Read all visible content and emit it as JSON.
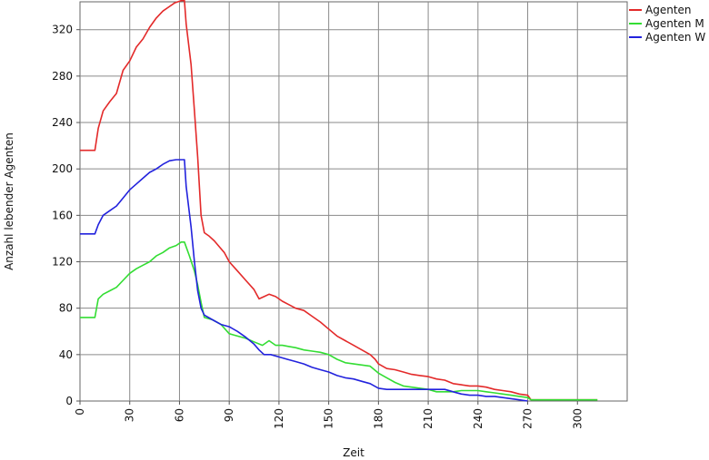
{
  "chart_data": {
    "type": "line",
    "title": "",
    "xlabel": "Zeit",
    "ylabel": "Anzahl lebender Agenten",
    "xlim": [
      0,
      330
    ],
    "ylim": [
      0,
      344
    ],
    "x_ticks": [
      0,
      30,
      60,
      90,
      120,
      150,
      180,
      210,
      240,
      270,
      300
    ],
    "y_ticks": [
      0,
      40,
      80,
      120,
      160,
      200,
      240,
      280,
      320
    ],
    "grid": true,
    "legend_position": "top-right",
    "series": [
      {
        "name": "Agenten",
        "color": "#e32a2a",
        "points": [
          [
            0,
            216
          ],
          [
            9,
            216
          ],
          [
            11,
            235
          ],
          [
            14,
            250
          ],
          [
            18,
            258
          ],
          [
            22,
            265
          ],
          [
            26,
            285
          ],
          [
            30,
            293
          ],
          [
            34,
            305
          ],
          [
            38,
            312
          ],
          [
            42,
            322
          ],
          [
            46,
            330
          ],
          [
            50,
            336
          ],
          [
            54,
            340
          ],
          [
            57,
            343
          ],
          [
            61,
            345
          ],
          [
            63,
            345
          ],
          [
            64,
            325
          ],
          [
            67,
            290
          ],
          [
            69,
            250
          ],
          [
            71,
            210
          ],
          [
            73,
            160
          ],
          [
            75,
            145
          ],
          [
            78,
            142
          ],
          [
            81,
            138
          ],
          [
            84,
            133
          ],
          [
            87,
            128
          ],
          [
            90,
            120
          ],
          [
            95,
            112
          ],
          [
            100,
            104
          ],
          [
            105,
            96
          ],
          [
            108,
            88
          ],
          [
            111,
            90
          ],
          [
            114,
            92
          ],
          [
            118,
            90
          ],
          [
            122,
            86
          ],
          [
            126,
            83
          ],
          [
            130,
            80
          ],
          [
            135,
            78
          ],
          [
            140,
            73
          ],
          [
            145,
            68
          ],
          [
            150,
            62
          ],
          [
            155,
            56
          ],
          [
            160,
            52
          ],
          [
            165,
            48
          ],
          [
            170,
            44
          ],
          [
            175,
            40
          ],
          [
            178,
            36
          ],
          [
            180,
            32
          ],
          [
            185,
            28
          ],
          [
            190,
            27
          ],
          [
            195,
            25
          ],
          [
            200,
            23
          ],
          [
            205,
            22
          ],
          [
            210,
            21
          ],
          [
            215,
            19
          ],
          [
            220,
            18
          ],
          [
            225,
            15
          ],
          [
            230,
            14
          ],
          [
            235,
            13
          ],
          [
            240,
            13
          ],
          [
            245,
            12
          ],
          [
            250,
            10
          ],
          [
            255,
            9
          ],
          [
            260,
            8
          ],
          [
            265,
            6
          ],
          [
            270,
            5
          ],
          [
            272,
            1
          ],
          [
            300,
            1
          ],
          [
            312,
            1
          ]
        ]
      },
      {
        "name": "Agenten M",
        "color": "#33dd33",
        "points": [
          [
            0,
            72
          ],
          [
            9,
            72
          ],
          [
            11,
            88
          ],
          [
            14,
            92
          ],
          [
            18,
            95
          ],
          [
            22,
            98
          ],
          [
            26,
            104
          ],
          [
            30,
            110
          ],
          [
            34,
            114
          ],
          [
            38,
            117
          ],
          [
            42,
            120
          ],
          [
            46,
            125
          ],
          [
            50,
            128
          ],
          [
            54,
            132
          ],
          [
            58,
            134
          ],
          [
            61,
            137
          ],
          [
            63,
            137
          ],
          [
            66,
            125
          ],
          [
            69,
            112
          ],
          [
            71,
            100
          ],
          [
            73,
            85
          ],
          [
            75,
            72
          ],
          [
            80,
            70
          ],
          [
            85,
            66
          ],
          [
            90,
            58
          ],
          [
            95,
            56
          ],
          [
            100,
            54
          ],
          [
            105,
            51
          ],
          [
            110,
            48
          ],
          [
            114,
            52
          ],
          [
            118,
            48
          ],
          [
            122,
            48
          ],
          [
            126,
            47
          ],
          [
            130,
            46
          ],
          [
            135,
            44
          ],
          [
            140,
            43
          ],
          [
            145,
            42
          ],
          [
            150,
            40
          ],
          [
            155,
            36
          ],
          [
            160,
            33
          ],
          [
            165,
            32
          ],
          [
            170,
            31
          ],
          [
            175,
            30
          ],
          [
            180,
            24
          ],
          [
            185,
            20
          ],
          [
            190,
            16
          ],
          [
            195,
            13
          ],
          [
            200,
            12
          ],
          [
            205,
            11
          ],
          [
            210,
            10
          ],
          [
            215,
            8
          ],
          [
            220,
            8
          ],
          [
            225,
            8
          ],
          [
            230,
            9
          ],
          [
            235,
            9
          ],
          [
            240,
            9
          ],
          [
            245,
            8
          ],
          [
            250,
            7
          ],
          [
            255,
            6
          ],
          [
            260,
            5
          ],
          [
            265,
            4
          ],
          [
            270,
            3
          ],
          [
            272,
            1
          ],
          [
            300,
            1
          ],
          [
            312,
            1
          ]
        ]
      },
      {
        "name": "Agenten W",
        "color": "#2222dd",
        "points": [
          [
            0,
            144
          ],
          [
            9,
            144
          ],
          [
            11,
            152
          ],
          [
            14,
            160
          ],
          [
            18,
            164
          ],
          [
            22,
            168
          ],
          [
            26,
            175
          ],
          [
            30,
            182
          ],
          [
            34,
            187
          ],
          [
            38,
            192
          ],
          [
            42,
            197
          ],
          [
            46,
            200
          ],
          [
            50,
            204
          ],
          [
            54,
            207
          ],
          [
            58,
            208
          ],
          [
            61,
            208
          ],
          [
            63,
            208
          ],
          [
            64,
            185
          ],
          [
            67,
            150
          ],
          [
            69,
            120
          ],
          [
            71,
            95
          ],
          [
            73,
            80
          ],
          [
            75,
            74
          ],
          [
            80,
            70
          ],
          [
            85,
            66
          ],
          [
            90,
            64
          ],
          [
            95,
            60
          ],
          [
            100,
            55
          ],
          [
            105,
            49
          ],
          [
            108,
            44
          ],
          [
            111,
            40
          ],
          [
            115,
            40
          ],
          [
            120,
            38
          ],
          [
            125,
            36
          ],
          [
            130,
            34
          ],
          [
            135,
            32
          ],
          [
            140,
            29
          ],
          [
            145,
            27
          ],
          [
            150,
            25
          ],
          [
            155,
            22
          ],
          [
            160,
            20
          ],
          [
            165,
            19
          ],
          [
            170,
            17
          ],
          [
            175,
            15
          ],
          [
            180,
            11
          ],
          [
            185,
            10
          ],
          [
            190,
            10
          ],
          [
            200,
            10
          ],
          [
            210,
            10
          ],
          [
            215,
            10
          ],
          [
            220,
            10
          ],
          [
            225,
            8
          ],
          [
            230,
            6
          ],
          [
            235,
            5
          ],
          [
            240,
            5
          ],
          [
            245,
            4
          ],
          [
            250,
            4
          ],
          [
            255,
            3
          ],
          [
            260,
            2
          ],
          [
            265,
            1
          ],
          [
            270,
            0
          ]
        ]
      }
    ]
  }
}
